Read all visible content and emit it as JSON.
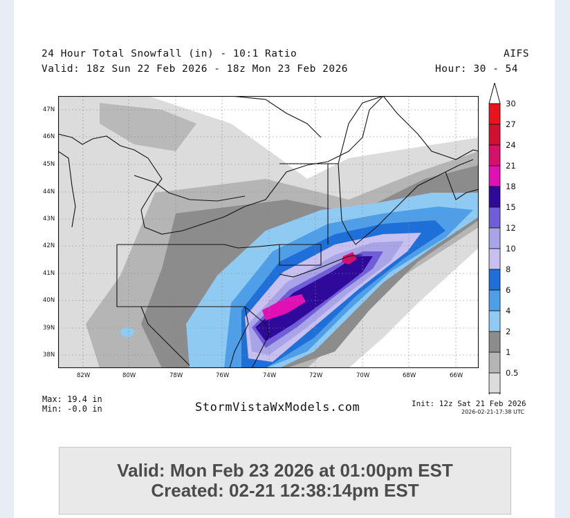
{
  "header": {
    "title_line1": "24 Hour Total Snowfall (in) - 10:1 Ratio",
    "title_line2": "Valid: 18z Sun 22 Feb 2026 - 18z Mon 23 Feb 2026",
    "model": "AIFS",
    "hours": "Hour: 30 - 54"
  },
  "map": {
    "lat_labels": [
      "47N",
      "46N",
      "45N",
      "44N",
      "43N",
      "42N",
      "41N",
      "40N",
      "39N",
      "38N"
    ],
    "lon_labels": [
      "82W",
      "80W",
      "78W",
      "76W",
      "74W",
      "72W",
      "70W",
      "68W",
      "66W"
    ]
  },
  "colorbar": {
    "levels": [
      "30",
      "27",
      "24",
      "21",
      "18",
      "15",
      "12",
      "10",
      "8",
      "6",
      "4",
      "2",
      "1",
      "0.5"
    ],
    "colors": [
      "#e8141d",
      "#cf1030",
      "#d4126c",
      "#e010b4",
      "#2f0a9a",
      "#6f5ed8",
      "#a9a3e8",
      "#c7c0f0",
      "#1f6fd8",
      "#4f9fe8",
      "#8fcaf3",
      "#8c8c8c",
      "#b5b5b5",
      "#dcdcdc"
    ]
  },
  "stats": {
    "max": "Max: 19.4 in",
    "min": "Min: -0.0 in"
  },
  "brand": "StormVistaWxModels.com",
  "init": {
    "line1": "Init: 12z Sat 21 Feb 2026",
    "line2": "2026-02-21-17:38 UTC"
  },
  "info": {
    "valid": "Valid: Mon Feb 23 2026 at 01:00pm EST",
    "created": "Created: 02-21 12:38:14pm EST"
  }
}
